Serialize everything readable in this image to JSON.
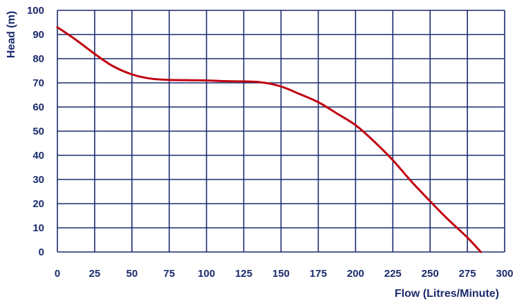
{
  "chart_data": {
    "type": "line",
    "title": "",
    "xlabel": "Flow (Litres/Minute)",
    "ylabel": "Head (m)",
    "xlim": [
      0,
      300
    ],
    "ylim": [
      0,
      100
    ],
    "x_ticks": [
      0,
      25,
      50,
      75,
      100,
      125,
      150,
      175,
      200,
      225,
      250,
      275,
      300
    ],
    "y_ticks": [
      0,
      10,
      20,
      30,
      40,
      50,
      60,
      70,
      80,
      90,
      100
    ],
    "grid": true,
    "colors": {
      "grid": "#1a2a6c",
      "line": "#c00010",
      "text": "#1a2a6c"
    },
    "series": [
      {
        "x": [
          0,
          12,
          25,
          37,
          50,
          62,
          75,
          87,
          100,
          112,
          125,
          137,
          150,
          162,
          175,
          187,
          200,
          212,
          225,
          237,
          250,
          262,
          275,
          284
        ],
        "values": [
          93,
          88,
          82,
          77,
          73.5,
          71.8,
          71.2,
          71.1,
          71,
          70.7,
          70.6,
          70.2,
          68.5,
          65.5,
          62,
          57.5,
          52.5,
          46,
          38,
          29.5,
          21,
          13.5,
          6,
          0
        ]
      }
    ]
  }
}
